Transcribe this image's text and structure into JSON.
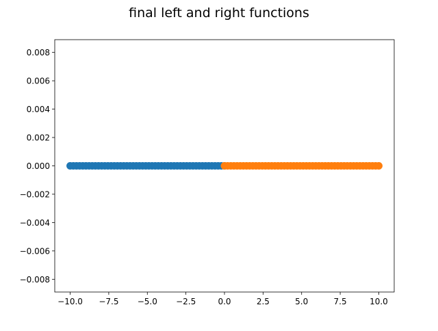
{
  "chart_data": {
    "type": "scatter",
    "title": "final left and right functions",
    "xlabel": "",
    "ylabel": "",
    "xlim": [
      -11.0,
      11.0
    ],
    "ylim": [
      -0.0089,
      0.0089
    ],
    "xticks": [
      -10.0,
      -7.5,
      -5.0,
      -2.5,
      0.0,
      2.5,
      5.0,
      7.5,
      10.0
    ],
    "xtick_labels": [
      "−10.0",
      "−7.5",
      "−5.0",
      "−2.5",
      "0.0",
      "2.5",
      "5.0",
      "7.5",
      "10.0"
    ],
    "yticks": [
      -0.008,
      -0.006,
      -0.004,
      -0.002,
      0.0,
      0.002,
      0.004,
      0.006,
      0.008
    ],
    "ytick_labels": [
      "−0.008",
      "−0.006",
      "−0.004",
      "−0.002",
      "0.000",
      "0.002",
      "0.004",
      "0.006",
      "0.008"
    ],
    "grid": false,
    "series": [
      {
        "color": "#1f77b4",
        "x_range": [
          -10.0,
          0.0
        ],
        "points": 50,
        "y": 0.0
      },
      {
        "color": "#ff7f0e",
        "x_range": [
          0.0,
          10.0
        ],
        "points": 50,
        "y": 0.0
      }
    ]
  }
}
